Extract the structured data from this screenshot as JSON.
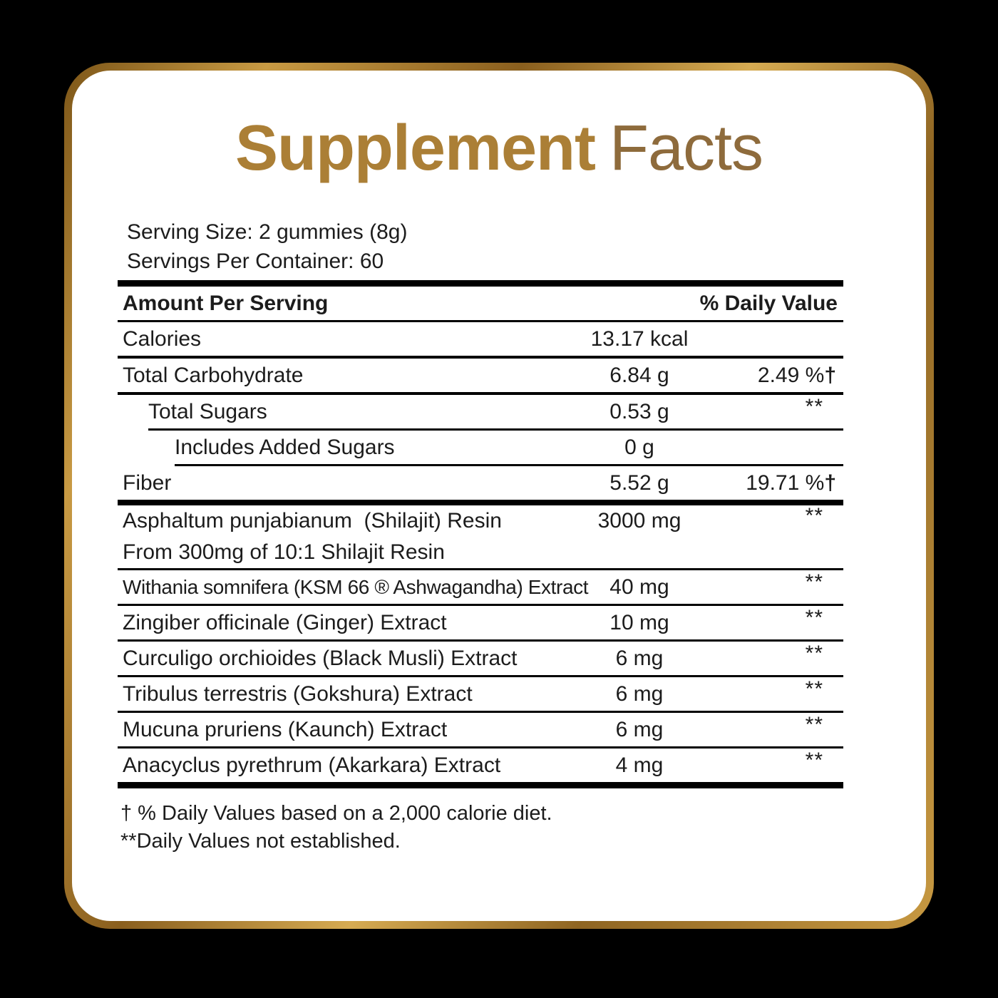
{
  "title": {
    "word1": "Supplement",
    "word2": "Facts"
  },
  "serving": {
    "size": "Serving Size: 2 gummies (8g)",
    "per_container": "Servings Per Container: 60"
  },
  "table": {
    "header": {
      "left": "Amount Per Serving",
      "right": "% Daily Value"
    },
    "rows": [
      {
        "name": "Calories",
        "amount": "13.17 kcal",
        "dv": "",
        "indent": 0,
        "rule_after": "medium"
      },
      {
        "name": "Total Carbohydrate",
        "amount": "6.84 g",
        "dv": "2.49 %†",
        "indent": 0,
        "rule_after": "medium"
      },
      {
        "name": "Total Sugars",
        "amount": "0.53 g",
        "dv": "**",
        "indent": 1,
        "rule_after": "indent1"
      },
      {
        "name": "Includes Added Sugars",
        "amount": "0 g",
        "dv": "",
        "indent": 2,
        "rule_after": "indent2"
      },
      {
        "name": "Fiber",
        "amount": "5.52 g",
        "dv": "19.71 %†",
        "indent": 0,
        "rule_after": "thick"
      },
      {
        "name": "Asphaltum punjabianum  (Shilajit) Resin",
        "name2": "From 300mg of 10:1 Shilajit Resin",
        "amount": "3000 mg",
        "dv": "**",
        "indent": 0,
        "rule_after": "thin"
      },
      {
        "name": "Withania somnifera (KSM 66 ® Ashwagandha) Extract",
        "amount": "40 mg",
        "dv": "**",
        "indent": 0,
        "rule_after": "thin"
      },
      {
        "name": "Zingiber officinale (Ginger) Extract",
        "amount": "10 mg",
        "dv": "**",
        "indent": 0,
        "rule_after": "thin"
      },
      {
        "name": "Curculigo orchioides (Black Musli) Extract",
        "amount": "6 mg",
        "dv": "**",
        "indent": 0,
        "rule_after": "thin"
      },
      {
        "name": "Tribulus terrestris (Gokshura) Extract",
        "amount": "6 mg",
        "dv": "**",
        "indent": 0,
        "rule_after": "thin"
      },
      {
        "name": "Mucuna pruriens (Kaunch) Extract",
        "amount": "6 mg",
        "dv": "**",
        "indent": 0,
        "rule_after": "thin"
      },
      {
        "name": "Anacyclus pyrethrum (Akarkara) Extract",
        "amount": "4 mg",
        "dv": "**",
        "indent": 0,
        "rule_after": "end"
      }
    ]
  },
  "footnotes": [
    "† % Daily Values based on a 2,000 calorie diet.",
    "**Daily Values not established."
  ],
  "colors": {
    "background": "#000000",
    "card": "#ffffff",
    "gold_border": "#c89a43",
    "title_supplement": "#ab7f36",
    "title_facts": "#8e6b3c",
    "text": "#1c1c1c",
    "rule": "#000000"
  }
}
